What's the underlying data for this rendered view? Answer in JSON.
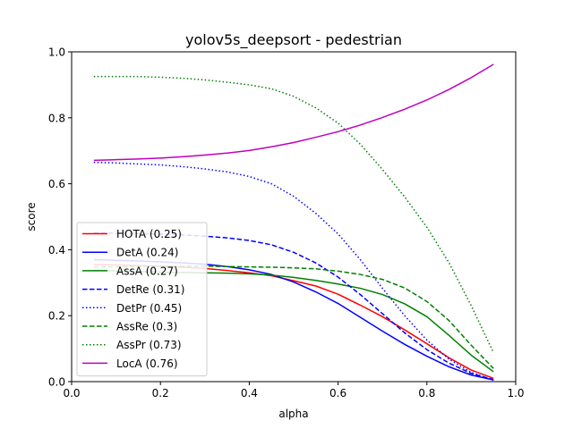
{
  "chart_data": {
    "type": "line",
    "title": "yolov5s_deepsort - pedestrian",
    "xlabel": "alpha",
    "ylabel": "score",
    "xlim": [
      0.0,
      1.0
    ],
    "ylim": [
      0.0,
      1.0
    ],
    "x_ticks": [
      "0.0",
      "0.2",
      "0.4",
      "0.6",
      "0.8",
      "1.0"
    ],
    "y_ticks": [
      "0.0",
      "0.2",
      "0.4",
      "0.6",
      "0.8",
      "1.0"
    ],
    "grid": false,
    "legend_position": "lower-left",
    "x": [
      0.05,
      0.1,
      0.15,
      0.2,
      0.25,
      0.3,
      0.35,
      0.4,
      0.45,
      0.5,
      0.55,
      0.6,
      0.65,
      0.7,
      0.75,
      0.8,
      0.85,
      0.9,
      0.95
    ],
    "series": [
      {
        "name": "HOTA (0.25)",
        "color": "#ff0000",
        "style": "solid",
        "values": [
          0.355,
          0.354,
          0.352,
          0.35,
          0.347,
          0.343,
          0.337,
          0.33,
          0.321,
          0.306,
          0.29,
          0.265,
          0.232,
          0.197,
          0.157,
          0.115,
          0.072,
          0.035,
          0.01
        ]
      },
      {
        "name": "DetA (0.24)",
        "color": "#0000ff",
        "style": "solid",
        "values": [
          0.37,
          0.368,
          0.366,
          0.363,
          0.36,
          0.356,
          0.349,
          0.339,
          0.325,
          0.302,
          0.272,
          0.237,
          0.195,
          0.153,
          0.113,
          0.077,
          0.045,
          0.02,
          0.005
        ]
      },
      {
        "name": "AssA (0.27)",
        "color": "#008000",
        "style": "solid",
        "values": [
          0.338,
          0.336,
          0.334,
          0.332,
          0.331,
          0.33,
          0.329,
          0.327,
          0.323,
          0.316,
          0.307,
          0.296,
          0.283,
          0.264,
          0.236,
          0.197,
          0.14,
          0.08,
          0.03
        ]
      },
      {
        "name": "DetRe (0.31)",
        "color": "#0000ff",
        "style": "dashed",
        "values": [
          0.452,
          0.45,
          0.449,
          0.447,
          0.445,
          0.441,
          0.436,
          0.428,
          0.415,
          0.392,
          0.36,
          0.317,
          0.264,
          0.206,
          0.148,
          0.097,
          0.056,
          0.025,
          0.006
        ]
      },
      {
        "name": "DetPr (0.45)",
        "color": "#0000ff",
        "style": "dotted",
        "values": [
          0.665,
          0.663,
          0.66,
          0.657,
          0.652,
          0.645,
          0.636,
          0.622,
          0.6,
          0.562,
          0.51,
          0.448,
          0.37,
          0.283,
          0.2,
          0.126,
          0.068,
          0.028,
          0.004
        ]
      },
      {
        "name": "AssRe (0.3)",
        "color": "#008000",
        "style": "dashed",
        "values": [
          0.348,
          0.348,
          0.349,
          0.35,
          0.35,
          0.35,
          0.349,
          0.348,
          0.347,
          0.345,
          0.342,
          0.335,
          0.325,
          0.31,
          0.284,
          0.243,
          0.185,
          0.11,
          0.04
        ]
      },
      {
        "name": "AssPr (0.73)",
        "color": "#008000",
        "style": "dotted",
        "values": [
          0.925,
          0.925,
          0.925,
          0.923,
          0.92,
          0.915,
          0.908,
          0.9,
          0.888,
          0.865,
          0.83,
          0.784,
          0.72,
          0.643,
          0.56,
          0.468,
          0.36,
          0.23,
          0.088
        ]
      },
      {
        "name": "LocA (0.76)",
        "color": "#bf00bf",
        "style": "solid",
        "values": [
          0.671,
          0.673,
          0.675,
          0.678,
          0.682,
          0.687,
          0.693,
          0.701,
          0.712,
          0.725,
          0.741,
          0.758,
          0.778,
          0.801,
          0.826,
          0.854,
          0.886,
          0.922,
          0.962
        ]
      }
    ]
  }
}
